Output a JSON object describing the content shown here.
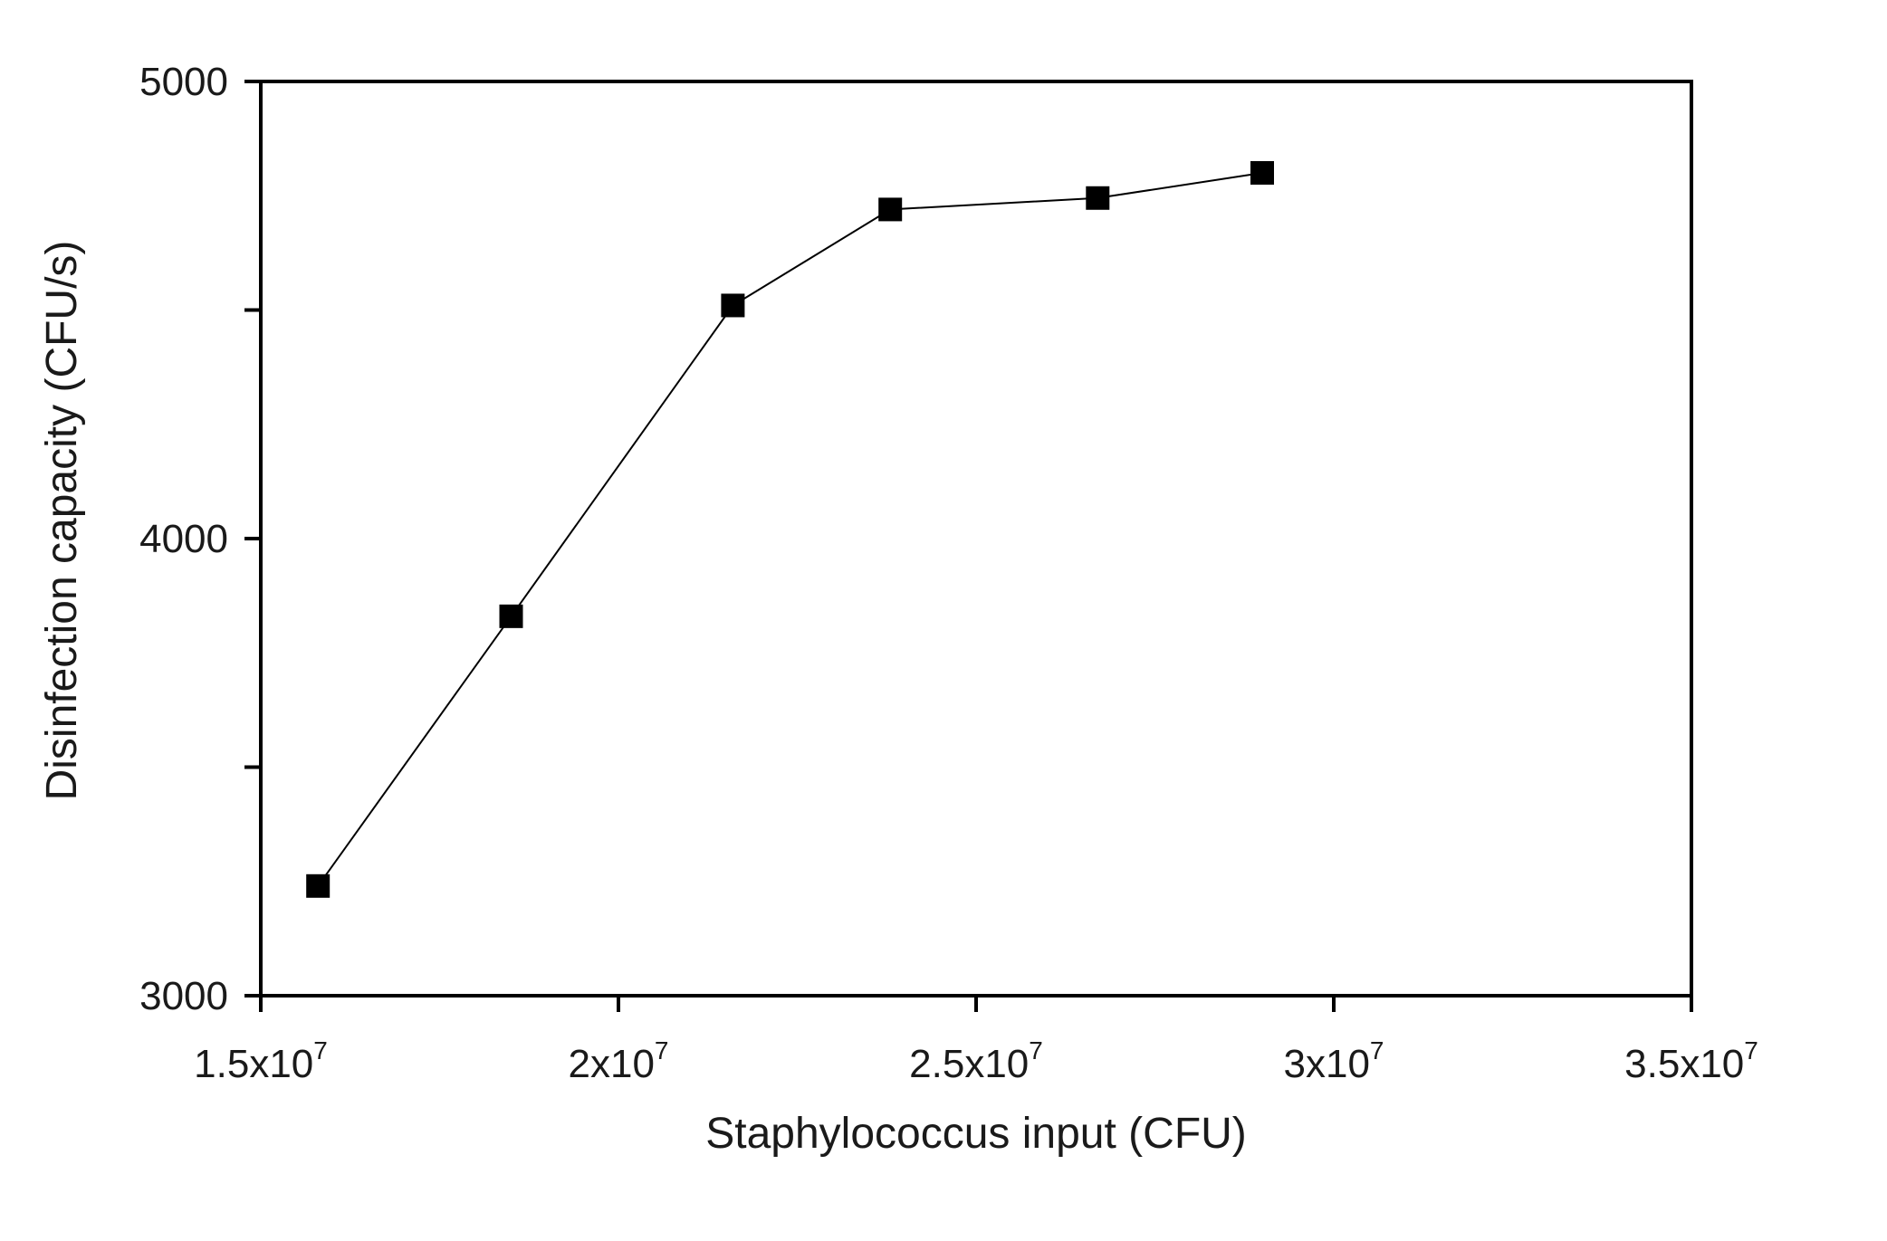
{
  "chart_data": {
    "type": "line",
    "title": "",
    "xlabel": "Staphylococcus input (CFU)",
    "ylabel": "Disinfection capacity (CFU/s)",
    "xlim": [
      15000000,
      35000000
    ],
    "ylim": [
      3000,
      5000
    ],
    "x_ticks": [
      {
        "value": 15000000,
        "mantissa": "1.5x10",
        "exp": "7"
      },
      {
        "value": 20000000,
        "mantissa": "2x10",
        "exp": "7"
      },
      {
        "value": 25000000,
        "mantissa": "2.5x10",
        "exp": "7"
      },
      {
        "value": 30000000,
        "mantissa": "3x10",
        "exp": "7"
      },
      {
        "value": 35000000,
        "mantissa": "3.5x10",
        "exp": "7"
      }
    ],
    "y_ticks": [
      {
        "value": 3000,
        "label": "3000"
      },
      {
        "value": 3500,
        "label": ""
      },
      {
        "value": 4000,
        "label": "4000"
      },
      {
        "value": 4500,
        "label": ""
      },
      {
        "value": 5000,
        "label": "5000"
      }
    ],
    "grid": false,
    "legend": "none",
    "series": [
      {
        "marker": "square",
        "color": "#000000",
        "x": [
          15800000,
          18500000,
          21600000,
          23800000,
          26700000,
          29000000
        ],
        "y": [
          3240,
          3830,
          4510,
          4720,
          4745,
          4800
        ]
      }
    ]
  }
}
